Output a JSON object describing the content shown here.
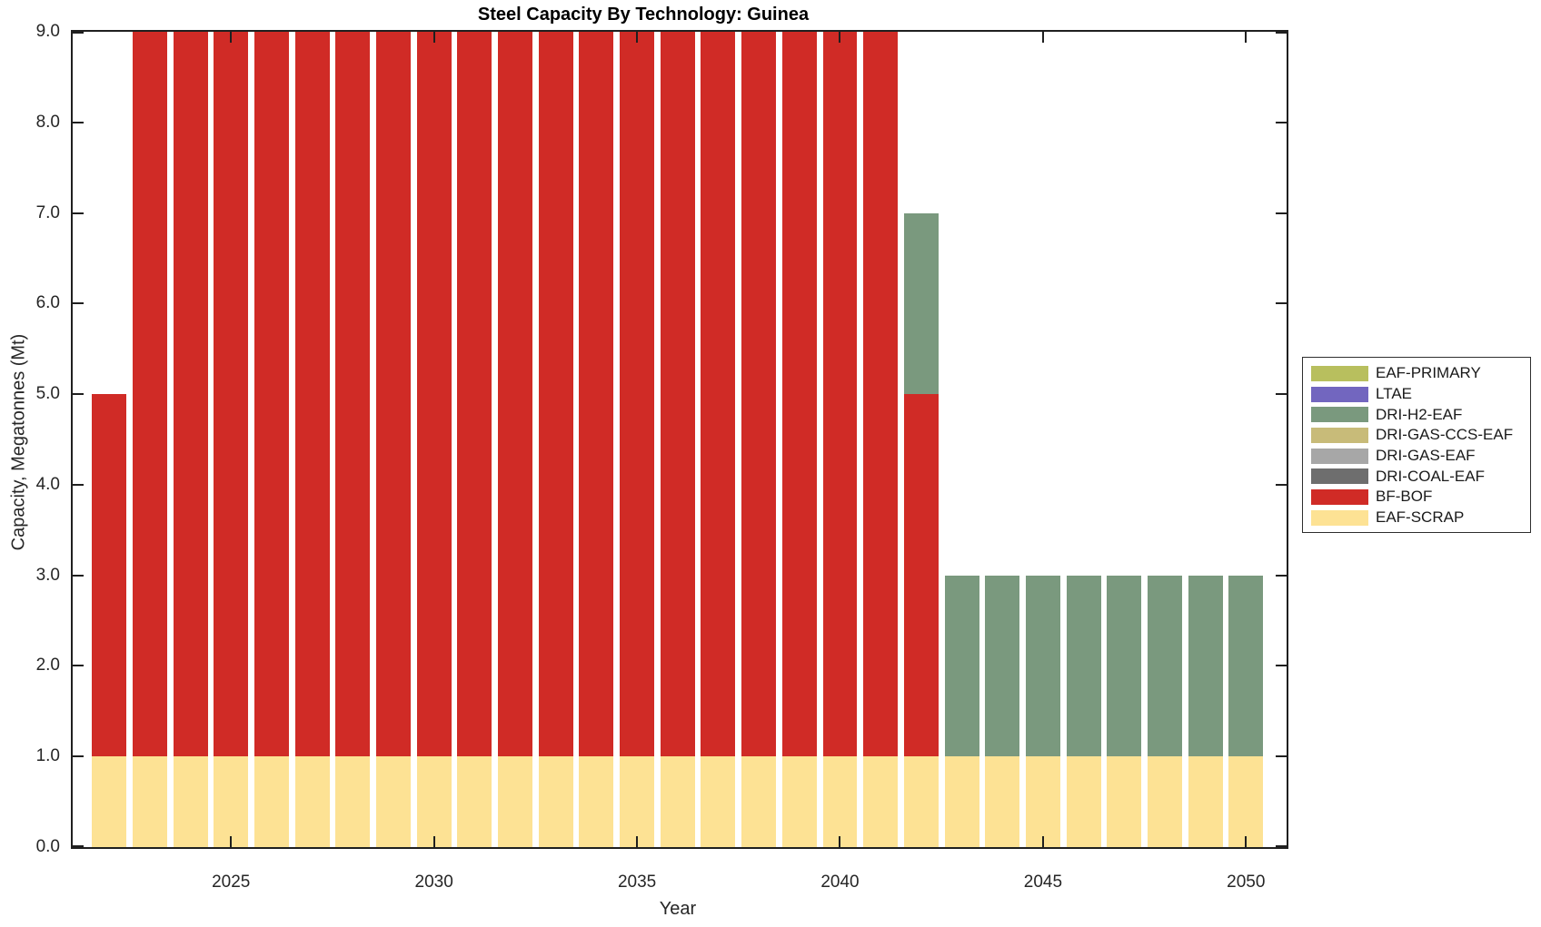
{
  "title": "Steel Capacity By Technology: Guinea",
  "axes": {
    "xlabel": "Year",
    "ylabel": "Capacity, Megatonnes (Mt)",
    "x_ticks": [
      2025,
      2030,
      2035,
      2040,
      2045,
      2050
    ],
    "y_ticks": [
      0,
      1,
      2,
      3,
      4,
      5,
      6,
      7,
      8,
      9
    ],
    "y_tick_labels": [
      "0.0",
      "1.0",
      "2.0",
      "3.0",
      "4.0",
      "5.0",
      "6.0",
      "7.0",
      "8.0",
      "9.0"
    ],
    "xlim": [
      2021.1,
      2051.0
    ],
    "ylim": [
      0,
      9
    ],
    "grid": false
  },
  "chart_data": {
    "type": "bar",
    "stacked": true,
    "bar_width_years": 0.85,
    "x": [
      2022,
      2023,
      2024,
      2025,
      2026,
      2027,
      2028,
      2029,
      2030,
      2031,
      2032,
      2033,
      2034,
      2035,
      2036,
      2037,
      2038,
      2039,
      2040,
      2041,
      2042,
      2043,
      2044,
      2045,
      2046,
      2047,
      2048,
      2049,
      2050
    ],
    "series": [
      {
        "name": "EAF-SCRAP",
        "color": "#FDE294",
        "values": [
          1,
          1,
          1,
          1,
          1,
          1,
          1,
          1,
          1,
          1,
          1,
          1,
          1,
          1,
          1,
          1,
          1,
          1,
          1,
          1,
          1,
          1,
          1,
          1,
          1,
          1,
          1,
          1,
          1
        ]
      },
      {
        "name": "BF-BOF",
        "color": "#D02B26",
        "values": [
          4,
          8,
          8,
          8,
          8,
          8,
          8,
          8,
          8,
          8,
          8,
          8,
          8,
          8,
          8,
          8,
          8,
          8,
          8,
          8,
          4,
          0,
          0,
          0,
          0,
          0,
          0,
          0,
          0
        ]
      },
      {
        "name": "DRI-COAL-EAF",
        "color": "#6E6E6E",
        "values": [
          0,
          0,
          0,
          0,
          0,
          0,
          0,
          0,
          0,
          0,
          0,
          0,
          0,
          0,
          0,
          0,
          0,
          0,
          0,
          0,
          0,
          0,
          0,
          0,
          0,
          0,
          0,
          0,
          0
        ]
      },
      {
        "name": "DRI-GAS-EAF",
        "color": "#A7A7A7",
        "values": [
          0,
          0,
          0,
          0,
          0,
          0,
          0,
          0,
          0,
          0,
          0,
          0,
          0,
          0,
          0,
          0,
          0,
          0,
          0,
          0,
          0,
          0,
          0,
          0,
          0,
          0,
          0,
          0,
          0
        ]
      },
      {
        "name": "DRI-GAS-CCS-EAF",
        "color": "#C8BB79",
        "values": [
          0,
          0,
          0,
          0,
          0,
          0,
          0,
          0,
          0,
          0,
          0,
          0,
          0,
          0,
          0,
          0,
          0,
          0,
          0,
          0,
          0,
          0,
          0,
          0,
          0,
          0,
          0,
          0,
          0
        ]
      },
      {
        "name": "DRI-H2-EAF",
        "color": "#7A997E",
        "values": [
          0,
          0,
          0,
          0,
          0,
          0,
          0,
          0,
          0,
          0,
          0,
          0,
          0,
          0,
          0,
          0,
          0,
          0,
          0,
          0,
          2,
          2,
          2,
          2,
          2,
          2,
          2,
          2,
          2
        ]
      },
      {
        "name": "LTAE",
        "color": "#7266BF",
        "values": [
          0,
          0,
          0,
          0,
          0,
          0,
          0,
          0,
          0,
          0,
          0,
          0,
          0,
          0,
          0,
          0,
          0,
          0,
          0,
          0,
          0,
          0,
          0,
          0,
          0,
          0,
          0,
          0,
          0
        ]
      },
      {
        "name": "EAF-PRIMARY",
        "color": "#B8BF5E",
        "values": [
          0,
          0,
          0,
          0,
          0,
          0,
          0,
          0,
          0,
          0,
          0,
          0,
          0,
          0,
          0,
          0,
          0,
          0,
          0,
          0,
          0,
          0,
          0,
          0,
          0,
          0,
          0,
          0,
          0
        ]
      }
    ],
    "title": "Steel Capacity By Technology: Guinea",
    "xlabel": "Year",
    "ylabel": "Capacity, Megatonnes (Mt)",
    "legend_position": "right-outside"
  },
  "legend": {
    "entries": [
      {
        "label": "EAF-PRIMARY",
        "color": "#B8BF5E"
      },
      {
        "label": "LTAE",
        "color": "#7266BF"
      },
      {
        "label": "DRI-H2-EAF",
        "color": "#7A997E"
      },
      {
        "label": "DRI-GAS-CCS-EAF",
        "color": "#C8BB79"
      },
      {
        "label": "DRI-GAS-EAF",
        "color": "#A7A7A7"
      },
      {
        "label": "DRI-COAL-EAF",
        "color": "#6E6E6E"
      },
      {
        "label": "BF-BOF",
        "color": "#D02B26"
      },
      {
        "label": "EAF-SCRAP",
        "color": "#FDE294"
      }
    ]
  },
  "style": {
    "axis_color": "#1f1f1f",
    "text_color": "#262626",
    "background": "#ffffff"
  }
}
